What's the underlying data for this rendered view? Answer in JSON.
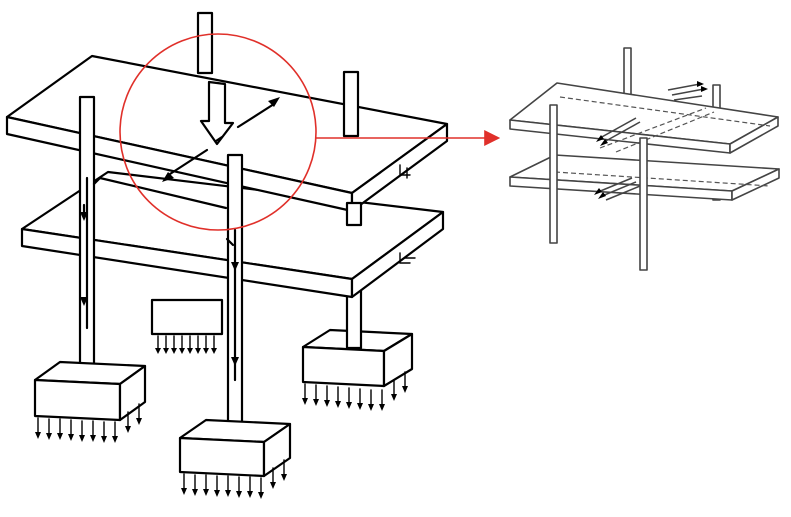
{
  "figure": {
    "colors": {
      "ink": "#000000",
      "highlight_circle": "#e0302a",
      "pointer_arrow": "#e0302a",
      "background": "#ffffff"
    },
    "icons": [
      "gravity-load-arrow",
      "distribution-arrow",
      "soil-pressure-arrow",
      "force-path-arrow"
    ]
  }
}
